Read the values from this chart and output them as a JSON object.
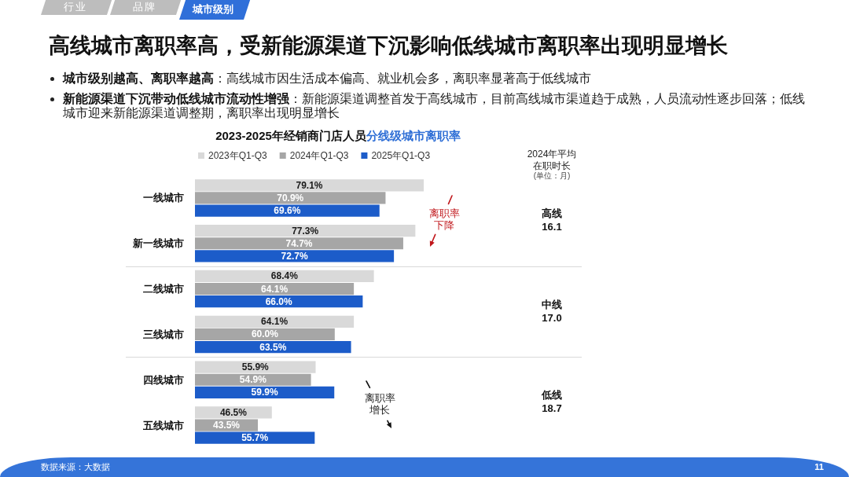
{
  "chart_data": {
    "type": "bar",
    "orientation": "horizontal",
    "title": "高线城市离职率高，受新能源渠道下沉影响低线城市离职率出现明显增长",
    "subtitle": "2023-2025年经销商门店人员分线级城市离职率",
    "categories": [
      "一线城市",
      "新一线城市",
      "二线城市",
      "三线城市",
      "四线城市",
      "五线城市"
    ],
    "series": [
      {
        "name": "2023年Q1-Q3",
        "color": "#d9d9d9",
        "values": [
          79.1,
          77.3,
          68.4,
          64.1,
          55.9,
          46.5
        ],
        "value_labels": [
          "79.1%",
          "77.3%",
          "68.4%",
          "64.1%",
          "55.9%",
          "46.5%"
        ]
      },
      {
        "name": "2024年Q1-Q3",
        "color": "#a6a6a6",
        "values": [
          70.9,
          74.7,
          64.1,
          60.0,
          54.9,
          43.5
        ],
        "value_labels": [
          "70.9%",
          "74.7%",
          "64.1%",
          "60.0%",
          "54.9%",
          "43.5%"
        ]
      },
      {
        "name": "2025年Q1-Q3",
        "color": "#1c5cc9",
        "values": [
          69.6,
          72.7,
          66.0,
          63.5,
          59.9,
          55.7
        ],
        "value_labels": [
          "69.6%",
          "72.7%",
          "66.0%",
          "63.5%",
          "59.9%",
          "55.7%"
        ]
      }
    ],
    "xlim": [
      30,
      113
    ],
    "tick_labels": "y",
    "legend": "top",
    "annotations": [
      "行业",
      "品牌",
      "城市级别",
      "城市级别越高、离职率越高",
      "：高线城市因生活成本偏高、就业机会多，离职率显著高于低线城市",
      "新能源渠道下沉带动低线城市流动性增强",
      "：新能源渠道调整首发于高线城市，目前高线城市渠道趋于成熟，人员流动性逐步回落；低线城市迎来新能源渠道调整期，离职率出现明显增长",
      "2024年平均在职时长",
      "(单位：月)",
      "高线",
      "16.1",
      "中线",
      "17.0",
      "低线",
      "18.7",
      "离职率下降",
      "离职率增长",
      "数据来源：大数据",
      "11"
    ]
  }
}
